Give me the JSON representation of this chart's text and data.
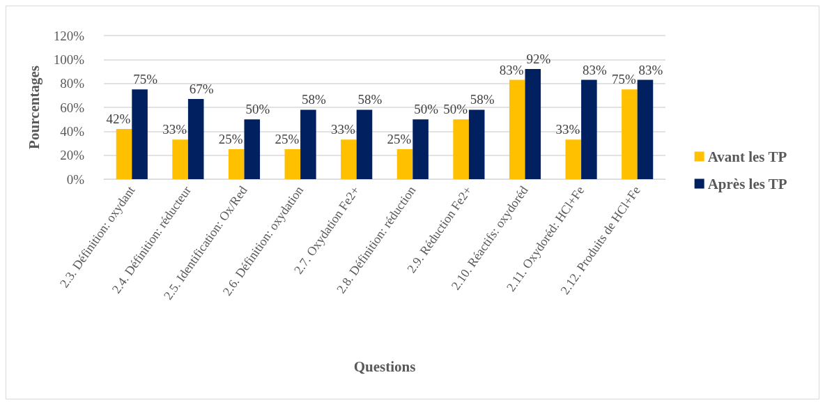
{
  "chart_data": {
    "type": "bar",
    "xlabel": "Questions",
    "ylabel": "Pourcentages",
    "categories": [
      "2.3. Définition: oxydant",
      "2.4. Définition: réducteur",
      "2.5. Identification: Ox/Red",
      "2.6. Définition: oxydation",
      "2.7. Oxydation Fe2+",
      "2.8. Définition: réduction",
      "2.9. Réduction Fe2+",
      "2.10. Réactifs: oxydoréd",
      "2.11. Oxydoréd: HCl+Fe",
      "2.12. Produits de HCl+Fe"
    ],
    "series": [
      {
        "name": "Avant les TP",
        "color": "#ffc000",
        "values": [
          42,
          33,
          25,
          25,
          33,
          25,
          50,
          83,
          33,
          75
        ],
        "value_labels": [
          "42%",
          "33%",
          "25%",
          "25%",
          "33%",
          "25%",
          "50%",
          "83%",
          "33%",
          "75%"
        ]
      },
      {
        "name": "Après les TP",
        "color": "#002060",
        "values": [
          75,
          67,
          50,
          58,
          58,
          50,
          58,
          92,
          83,
          83
        ],
        "value_labels": [
          "75%",
          "67%",
          "50%",
          "58%",
          "58%",
          "50%",
          "58%",
          "92%",
          "83%",
          "83%"
        ]
      }
    ],
    "ylim": [
      0,
      120
    ],
    "yticks": [
      {
        "value": 0,
        "label": "0%"
      },
      {
        "value": 20,
        "label": "20%"
      },
      {
        "value": 40,
        "label": "40%"
      },
      {
        "value": 60,
        "label": "60%"
      },
      {
        "value": 80,
        "label": "80%"
      },
      {
        "value": 100,
        "label": "100%"
      },
      {
        "value": 120,
        "label": "120%"
      }
    ],
    "grid": "y",
    "legend": "right"
  }
}
